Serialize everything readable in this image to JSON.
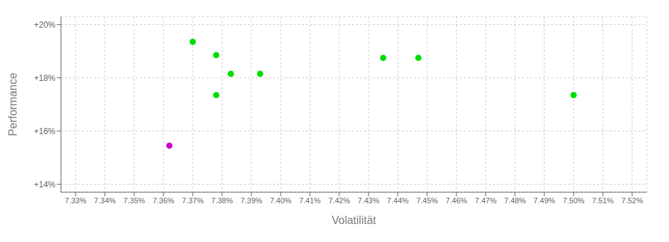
{
  "chart_data": {
    "type": "scatter",
    "xlabel": "Volatilität",
    "ylabel": "Performance",
    "xlim": [
      7.325,
      7.525
    ],
    "ylim": [
      13.7,
      20.3
    ],
    "xticks": [
      {
        "value": 7.33,
        "label": "7.33%"
      },
      {
        "value": 7.34,
        "label": "7.34%"
      },
      {
        "value": 7.35,
        "label": "7.35%"
      },
      {
        "value": 7.36,
        "label": "7.36%"
      },
      {
        "value": 7.37,
        "label": "7.37%"
      },
      {
        "value": 7.38,
        "label": "7.38%"
      },
      {
        "value": 7.39,
        "label": "7.39%"
      },
      {
        "value": 7.4,
        "label": "7.40%"
      },
      {
        "value": 7.41,
        "label": "7.41%"
      },
      {
        "value": 7.42,
        "label": "7.42%"
      },
      {
        "value": 7.43,
        "label": "7.43%"
      },
      {
        "value": 7.44,
        "label": "7.44%"
      },
      {
        "value": 7.45,
        "label": "7.45%"
      },
      {
        "value": 7.46,
        "label": "7.46%"
      },
      {
        "value": 7.47,
        "label": "7.47%"
      },
      {
        "value": 7.48,
        "label": "7.48%"
      },
      {
        "value": 7.49,
        "label": "7.49%"
      },
      {
        "value": 7.5,
        "label": "7.50%"
      },
      {
        "value": 7.51,
        "label": "7.51%"
      },
      {
        "value": 7.52,
        "label": "7.52%"
      }
    ],
    "yticks": [
      {
        "value": 14.0,
        "label": "+14%"
      },
      {
        "value": 16.0,
        "label": "+16%"
      },
      {
        "value": 18.0,
        "label": "+18%"
      },
      {
        "value": 20.0,
        "label": "+20%"
      }
    ],
    "grid": true,
    "series": [
      {
        "color": "#00dd00",
        "x": [
          7.37,
          7.378,
          7.383,
          7.393,
          7.378,
          7.435,
          7.447,
          7.5
        ],
        "values": [
          19.35,
          18.85,
          18.15,
          18.15,
          17.35,
          18.75,
          18.75,
          17.35
        ]
      },
      {
        "color": "#cc00cc",
        "x": [
          7.362
        ],
        "values": [
          15.45
        ]
      }
    ]
  }
}
